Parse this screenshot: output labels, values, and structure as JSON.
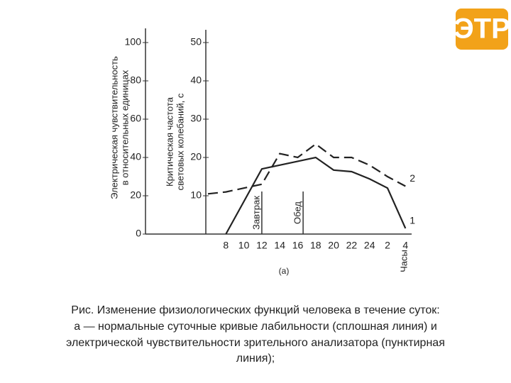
{
  "logo": "ЭТР",
  "chart_data": {
    "type": "line",
    "ylabel": [
      "Электрическая чувствительность",
      "в относительных единицах"
    ],
    "y2label": [
      "Критическая частота",
      "световых колебаний, с"
    ],
    "xlabel": "Часы",
    "subtitle": "(а)",
    "categories": [
      null,
      8,
      10,
      12,
      14,
      16,
      18,
      20,
      22,
      24,
      2,
      4
    ],
    "ylim": [
      0,
      100
    ],
    "yticks": [
      0,
      20,
      40,
      60,
      80,
      100
    ],
    "y2lim": [
      0,
      50
    ],
    "y2ticks": [
      10,
      20,
      30,
      40,
      50
    ],
    "series": [
      {
        "name": "1",
        "color": "#222222",
        "axis": "y2",
        "dash": false,
        "values": [
          null,
          0,
          8.5,
          17,
          18,
          19,
          20,
          16.7,
          16.3,
          14.4,
          12,
          1.5
        ]
      },
      {
        "name": "2",
        "color": "#222222",
        "dash": true,
        "values": [
          21,
          22,
          24,
          26,
          42,
          40,
          47,
          40,
          40,
          36,
          30,
          25
        ]
      }
    ],
    "annotations": [
      {
        "text": "Завтрак",
        "x": 12
      },
      {
        "text": "Обед",
        "x": 16.6
      }
    ]
  },
  "caption": [
    "Рис. Изменение физиологических функций человека в течение суток:",
    "а — нормальные суточные кривые лабильности (сплошная линия) и",
    "электрической чувствительности зрительного анализатора (пунктирная",
    "линия);"
  ]
}
